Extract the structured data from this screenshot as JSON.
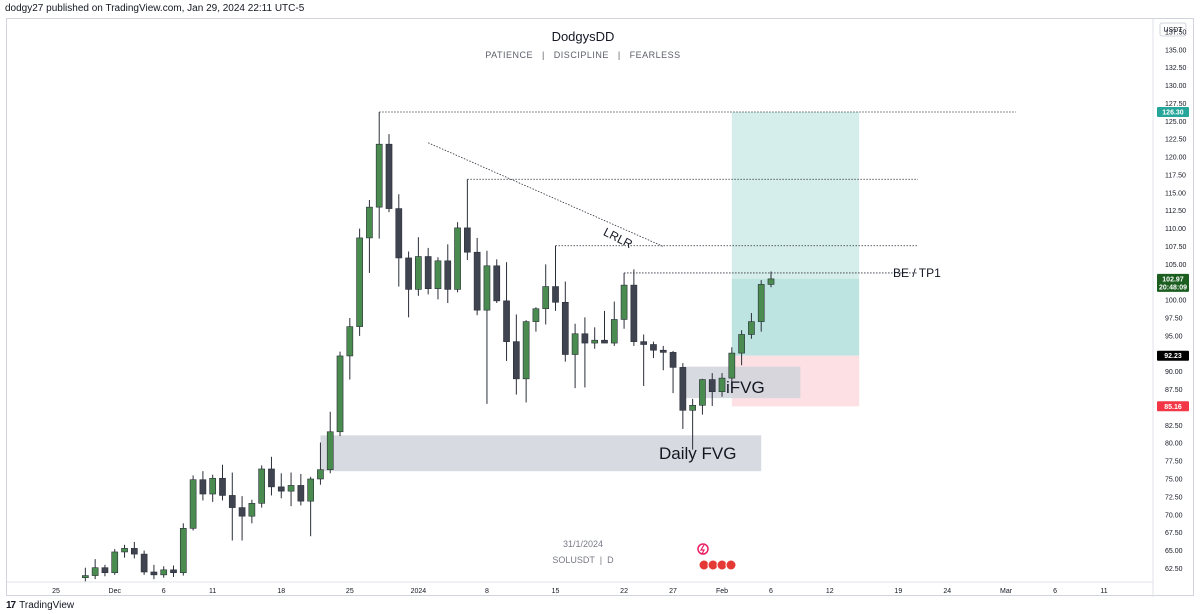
{
  "publisher": "dodgy27 published on TradingView.com, Jan 29, 2024 22:11 UTC-5",
  "title": "DodgysDD",
  "subtitle": "PATIENCE   |   DISCIPLINE   |   FEARLESS",
  "currency": "USDT",
  "watermark": {
    "date": "31/1/2024",
    "symbol": "SOLUSDT  |  D"
  },
  "footer": {
    "logo": "17",
    "brand": "TradingView"
  },
  "annotations": {
    "lrlr": "LRLR",
    "be_tp1": "BE / TP1",
    "ifvg": "iFVG",
    "daily_fvg": "Daily FVG"
  },
  "price_tags": {
    "target": {
      "value": "126.30",
      "color": "#26a69a"
    },
    "current": {
      "value": "102.97",
      "time": "20:48:09",
      "color": "#1b5e20"
    },
    "entry": {
      "value": "92.23",
      "color": "#000000"
    },
    "stop": {
      "value": "85.16",
      "color": "#f23645"
    }
  },
  "colors": {
    "bull": "#4a8c4f",
    "bear": "#3f4450",
    "wick": "#2a2e39",
    "profit_zone": "#b2dfdb",
    "loss_zone": "#fde0e3",
    "fvg_zone": "#d1d4dc"
  },
  "chart_data": {
    "type": "candlestick",
    "symbol": "SOLUSDT",
    "timeframe": "D",
    "y_ticks": [
      "137.50",
      "135.00",
      "132.50",
      "130.00",
      "127.50",
      "125.00",
      "122.50",
      "120.00",
      "117.50",
      "115.00",
      "112.50",
      "110.00",
      "107.50",
      "105.00",
      "102.50",
      "100.00",
      "97.50",
      "95.00",
      "92.50",
      "90.00",
      "87.50",
      "85.00",
      "82.50",
      "80.00",
      "77.50",
      "75.00",
      "72.50",
      "70.00",
      "67.50",
      "65.00",
      "62.50"
    ],
    "ylim": [
      60.6,
      139.3
    ],
    "x_ticks": [
      {
        "label": "25",
        "date": "2023-11-25"
      },
      {
        "label": "Dec",
        "date": "2023-12-01"
      },
      {
        "label": "6",
        "date": "2023-12-06"
      },
      {
        "label": "11",
        "date": "2023-12-11"
      },
      {
        "label": "18",
        "date": "2023-12-18"
      },
      {
        "label": "25",
        "date": "2023-12-25"
      },
      {
        "label": "2024",
        "date": "2024-01-01"
      },
      {
        "label": "8",
        "date": "2024-01-08"
      },
      {
        "label": "15",
        "date": "2024-01-15"
      },
      {
        "label": "22",
        "date": "2024-01-22"
      },
      {
        "label": "27",
        "date": "2024-01-27"
      },
      {
        "label": "Feb",
        "date": "2024-02-01"
      },
      {
        "label": "6",
        "date": "2024-02-06"
      },
      {
        "label": "12",
        "date": "2024-02-12"
      },
      {
        "label": "19",
        "date": "2024-02-19"
      },
      {
        "label": "24",
        "date": "2024-02-24"
      },
      {
        "label": "Mar",
        "date": "2024-03-01"
      },
      {
        "label": "6",
        "date": "2024-03-06"
      },
      {
        "label": "11",
        "date": "2024-03-11"
      }
    ],
    "x_start": "2023-11-20",
    "x_end": "2024-03-16",
    "candles": [
      {
        "date": "2023-11-28",
        "o": 61.2,
        "h": 62.6,
        "l": 60.7,
        "c": 61.5
      },
      {
        "date": "2023-11-29",
        "o": 61.5,
        "h": 63.8,
        "l": 61.0,
        "c": 62.6
      },
      {
        "date": "2023-11-30",
        "o": 62.6,
        "h": 63.0,
        "l": 61.4,
        "c": 61.9
      },
      {
        "date": "2023-12-01",
        "o": 61.9,
        "h": 65.2,
        "l": 61.6,
        "c": 64.8
      },
      {
        "date": "2023-12-02",
        "o": 64.8,
        "h": 65.8,
        "l": 64.0,
        "c": 65.3
      },
      {
        "date": "2023-12-03",
        "o": 65.3,
        "h": 66.2,
        "l": 63.9,
        "c": 64.5
      },
      {
        "date": "2023-12-04",
        "o": 64.5,
        "h": 65.0,
        "l": 61.6,
        "c": 62.0
      },
      {
        "date": "2023-12-05",
        "o": 62.0,
        "h": 63.0,
        "l": 61.0,
        "c": 61.6
      },
      {
        "date": "2023-12-06",
        "o": 61.6,
        "h": 62.8,
        "l": 61.2,
        "c": 62.3
      },
      {
        "date": "2023-12-07",
        "o": 62.3,
        "h": 62.9,
        "l": 61.3,
        "c": 61.9
      },
      {
        "date": "2023-12-08",
        "o": 61.9,
        "h": 68.8,
        "l": 61.5,
        "c": 68.1
      },
      {
        "date": "2023-12-09",
        "o": 68.1,
        "h": 75.5,
        "l": 67.8,
        "c": 74.9
      },
      {
        "date": "2023-12-10",
        "o": 74.9,
        "h": 76.1,
        "l": 72.0,
        "c": 72.9
      },
      {
        "date": "2023-12-11",
        "o": 72.9,
        "h": 75.6,
        "l": 71.8,
        "c": 75.1
      },
      {
        "date": "2023-12-12",
        "o": 75.1,
        "h": 77.0,
        "l": 72.0,
        "c": 72.7
      },
      {
        "date": "2023-12-13",
        "o": 72.7,
        "h": 75.9,
        "l": 66.4,
        "c": 71.0
      },
      {
        "date": "2023-12-14",
        "o": 71.0,
        "h": 72.6,
        "l": 66.4,
        "c": 69.8
      },
      {
        "date": "2023-12-15",
        "o": 69.8,
        "h": 72.1,
        "l": 68.8,
        "c": 71.6
      },
      {
        "date": "2023-12-16",
        "o": 71.6,
        "h": 76.9,
        "l": 71.0,
        "c": 76.4
      },
      {
        "date": "2023-12-17",
        "o": 76.4,
        "h": 78.1,
        "l": 72.7,
        "c": 73.9
      },
      {
        "date": "2023-12-18",
        "o": 73.9,
        "h": 75.8,
        "l": 72.3,
        "c": 73.3
      },
      {
        "date": "2023-12-19",
        "o": 73.3,
        "h": 75.9,
        "l": 71.2,
        "c": 74.1
      },
      {
        "date": "2023-12-20",
        "o": 74.1,
        "h": 75.7,
        "l": 71.3,
        "c": 71.9
      },
      {
        "date": "2023-12-21",
        "o": 71.9,
        "h": 75.3,
        "l": 67.0,
        "c": 75.0
      },
      {
        "date": "2023-12-22",
        "o": 75.0,
        "h": 80.1,
        "l": 74.2,
        "c": 76.3
      },
      {
        "date": "2023-12-23",
        "o": 76.3,
        "h": 84.4,
        "l": 75.8,
        "c": 81.6
      },
      {
        "date": "2023-12-24",
        "o": 81.6,
        "h": 92.8,
        "l": 81.0,
        "c": 92.2
      },
      {
        "date": "2023-12-25",
        "o": 92.2,
        "h": 97.5,
        "l": 88.9,
        "c": 96.3
      },
      {
        "date": "2023-12-26",
        "o": 96.3,
        "h": 110.0,
        "l": 95.0,
        "c": 108.7
      },
      {
        "date": "2023-12-27",
        "o": 108.7,
        "h": 114.0,
        "l": 103.8,
        "c": 113.0
      },
      {
        "date": "2023-12-28",
        "o": 113.0,
        "h": 126.3,
        "l": 108.6,
        "c": 121.8
      },
      {
        "date": "2023-12-29",
        "o": 121.8,
        "h": 123.2,
        "l": 112.3,
        "c": 112.8
      },
      {
        "date": "2023-12-30",
        "o": 112.8,
        "h": 114.8,
        "l": 101.9,
        "c": 105.9
      },
      {
        "date": "2023-12-31",
        "o": 105.9,
        "h": 106.8,
        "l": 97.6,
        "c": 101.5
      },
      {
        "date": "2024-01-01",
        "o": 101.5,
        "h": 108.8,
        "l": 100.6,
        "c": 106.1
      },
      {
        "date": "2024-01-02",
        "o": 106.1,
        "h": 107.3,
        "l": 100.8,
        "c": 101.6
      },
      {
        "date": "2024-01-03",
        "o": 101.6,
        "h": 106.0,
        "l": 100.1,
        "c": 105.5
      },
      {
        "date": "2024-01-04",
        "o": 105.5,
        "h": 107.8,
        "l": 99.6,
        "c": 101.5
      },
      {
        "date": "2024-01-05",
        "o": 101.5,
        "h": 110.9,
        "l": 101.1,
        "c": 110.1
      },
      {
        "date": "2024-01-06",
        "o": 110.1,
        "h": 116.9,
        "l": 105.6,
        "c": 106.7
      },
      {
        "date": "2024-01-07",
        "o": 106.7,
        "h": 108.7,
        "l": 97.9,
        "c": 98.6
      },
      {
        "date": "2024-01-08",
        "o": 98.6,
        "h": 106.9,
        "l": 85.5,
        "c": 104.8
      },
      {
        "date": "2024-01-09",
        "o": 104.8,
        "h": 105.7,
        "l": 99.6,
        "c": 99.9
      },
      {
        "date": "2024-01-10",
        "o": 99.9,
        "h": 105.3,
        "l": 91.5,
        "c": 94.2
      },
      {
        "date": "2024-01-11",
        "o": 94.2,
        "h": 98.0,
        "l": 86.8,
        "c": 89.0
      },
      {
        "date": "2024-01-12",
        "o": 89.0,
        "h": 97.2,
        "l": 85.7,
        "c": 97.0
      },
      {
        "date": "2024-01-13",
        "o": 97.0,
        "h": 99.0,
        "l": 95.6,
        "c": 98.8
      },
      {
        "date": "2024-01-14",
        "o": 98.8,
        "h": 105.0,
        "l": 96.6,
        "c": 101.9
      },
      {
        "date": "2024-01-15",
        "o": 101.9,
        "h": 107.6,
        "l": 98.5,
        "c": 99.7
      },
      {
        "date": "2024-01-16",
        "o": 99.7,
        "h": 102.6,
        "l": 91.4,
        "c": 92.4
      },
      {
        "date": "2024-01-17",
        "o": 92.4,
        "h": 96.7,
        "l": 87.7,
        "c": 95.3
      },
      {
        "date": "2024-01-18",
        "o": 95.3,
        "h": 97.6,
        "l": 87.8,
        "c": 94.0
      },
      {
        "date": "2024-01-19",
        "o": 94.0,
        "h": 96.2,
        "l": 93.2,
        "c": 94.4
      },
      {
        "date": "2024-01-20",
        "o": 94.4,
        "h": 98.5,
        "l": 94.0,
        "c": 94.0
      },
      {
        "date": "2024-01-21",
        "o": 94.0,
        "h": 99.8,
        "l": 93.6,
        "c": 97.3
      },
      {
        "date": "2024-01-22",
        "o": 97.3,
        "h": 103.8,
        "l": 96.0,
        "c": 102.1
      },
      {
        "date": "2024-01-23",
        "o": 102.1,
        "h": 104.3,
        "l": 93.6,
        "c": 94.2
      },
      {
        "date": "2024-01-24",
        "o": 94.2,
        "h": 95.2,
        "l": 88.0,
        "c": 93.8
      },
      {
        "date": "2024-01-25",
        "o": 93.8,
        "h": 94.2,
        "l": 91.9,
        "c": 93.0
      },
      {
        "date": "2024-01-26",
        "o": 93.0,
        "h": 93.6,
        "l": 90.2,
        "c": 92.7
      },
      {
        "date": "2024-01-27",
        "o": 92.7,
        "h": 92.9,
        "l": 87.0,
        "c": 90.6
      },
      {
        "date": "2024-01-28",
        "o": 90.6,
        "h": 91.2,
        "l": 82.0,
        "c": 84.6
      },
      {
        "date": "2024-01-29",
        "o": 84.6,
        "h": 86.2,
        "l": 79.1,
        "c": 85.3
      },
      {
        "date": "2024-01-30",
        "o": 85.3,
        "h": 89.0,
        "l": 84.0,
        "c": 88.9
      },
      {
        "date": "2024-01-31",
        "o": 88.9,
        "h": 89.8,
        "l": 85.2,
        "c": 87.2
      },
      {
        "date": "2024-02-01",
        "o": 87.2,
        "h": 89.8,
        "l": 86.5,
        "c": 89.1
      },
      {
        "date": "2024-02-02",
        "o": 89.1,
        "h": 93.4,
        "l": 88.0,
        "c": 92.6
      },
      {
        "date": "2024-02-03",
        "o": 92.6,
        "h": 95.8,
        "l": 90.9,
        "c": 95.2
      },
      {
        "date": "2024-02-04",
        "o": 95.2,
        "h": 98.2,
        "l": 94.6,
        "c": 97.0
      },
      {
        "date": "2024-02-05",
        "o": 97.0,
        "h": 102.8,
        "l": 95.6,
        "c": 102.2
      },
      {
        "date": "2024-02-06",
        "o": 102.2,
        "h": 104.0,
        "l": 101.8,
        "c": 102.97
      }
    ],
    "levels": [
      {
        "name": "swing-high",
        "value": 126.3,
        "from": "2023-12-28",
        "to": "2024-03-02"
      },
      {
        "name": "jan-6-high",
        "value": 116.9,
        "from": "2024-01-06",
        "to": "2024-02-21"
      },
      {
        "name": "jan-15-high",
        "value": 107.6,
        "from": "2024-01-15",
        "to": "2024-02-21"
      },
      {
        "name": "jan-22-high",
        "value": 103.8,
        "from": "2024-01-22",
        "to": "2024-02-21"
      }
    ],
    "trendline": {
      "from": {
        "date": "2024-01-02",
        "price": 122.0
      },
      "to": {
        "date": "2024-01-26",
        "price": 107.5
      }
    },
    "position": {
      "entry": 92.23,
      "stop": 85.16,
      "target": 126.3,
      "from": "2024-02-02",
      "to": "2024-02-15"
    },
    "zones": [
      {
        "name": "ifvg",
        "top": 90.7,
        "bottom": 86.3,
        "from": "2024-01-28",
        "to": "2024-02-09"
      },
      {
        "name": "daily-fvg",
        "top": 81.1,
        "bottom": 76.1,
        "from": "2023-12-22",
        "to": "2024-02-05"
      }
    ],
    "grid": false,
    "legend": "none"
  }
}
